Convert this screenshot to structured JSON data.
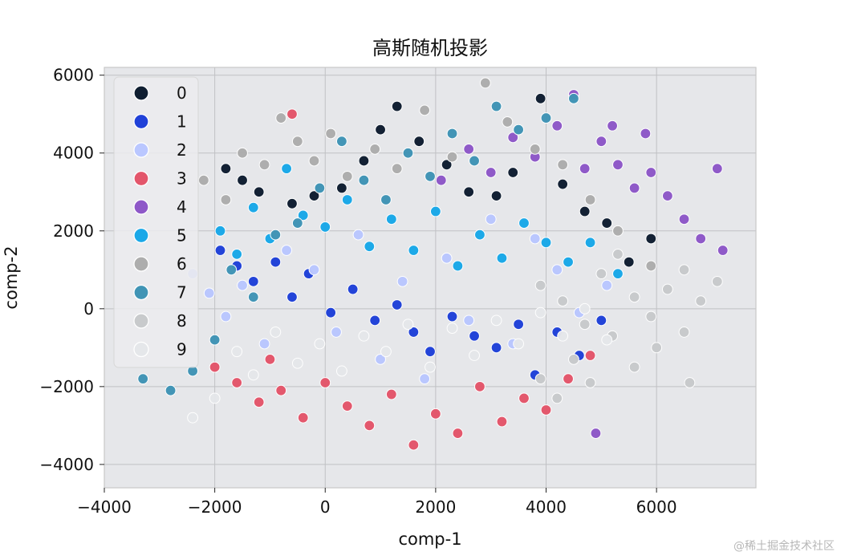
{
  "chart_data": {
    "type": "scatter",
    "title": "高斯随机投影",
    "xlabel": "comp-1",
    "ylabel": "comp-2",
    "xlim": [
      -4000,
      7800
    ],
    "ylim": [
      -4600,
      6200
    ],
    "x_ticks": [
      -4000,
      -2000,
      0,
      2000,
      4000,
      6000
    ],
    "y_ticks": [
      -4000,
      -2000,
      0,
      2000,
      4000,
      6000
    ],
    "x_tick_labels": [
      "−4000",
      "−2000",
      "0",
      "2000",
      "4000",
      "6000"
    ],
    "y_tick_labels": [
      "−4000",
      "−2000",
      "0",
      "2000",
      "4000",
      "6000"
    ],
    "grid": true,
    "legend_position": "top-left",
    "series": [
      {
        "name": "0",
        "color": "#0f1e31",
        "points": [
          [
            -1800,
            3600
          ],
          [
            -1500,
            3300
          ],
          [
            -1200,
            3000
          ],
          [
            -600,
            2700
          ],
          [
            -200,
            2900
          ],
          [
            300,
            3100
          ],
          [
            700,
            3800
          ],
          [
            1000,
            4600
          ],
          [
            1300,
            5200
          ],
          [
            1700,
            4300
          ],
          [
            2200,
            3700
          ],
          [
            2600,
            3000
          ],
          [
            3100,
            2900
          ],
          [
            3400,
            3500
          ],
          [
            3900,
            5400
          ],
          [
            4300,
            3200
          ],
          [
            4700,
            2500
          ],
          [
            5100,
            2200
          ],
          [
            5500,
            1200
          ],
          [
            5900,
            1800
          ]
        ]
      },
      {
        "name": "1",
        "color": "#2041d8",
        "points": [
          [
            -1900,
            1500
          ],
          [
            -1600,
            1100
          ],
          [
            -1300,
            700
          ],
          [
            -900,
            1200
          ],
          [
            -600,
            300
          ],
          [
            -300,
            900
          ],
          [
            100,
            -100
          ],
          [
            500,
            500
          ],
          [
            900,
            -300
          ],
          [
            1300,
            100
          ],
          [
            1600,
            -600
          ],
          [
            1900,
            -1100
          ],
          [
            2300,
            -200
          ],
          [
            2700,
            -700
          ],
          [
            3100,
            -1000
          ],
          [
            3500,
            -400
          ],
          [
            3800,
            -1700
          ],
          [
            4200,
            -600
          ],
          [
            4600,
            -1200
          ],
          [
            5000,
            -300
          ]
        ]
      },
      {
        "name": "2",
        "color": "#bac7ff",
        "points": [
          [
            -2400,
            900
          ],
          [
            -2100,
            400
          ],
          [
            -1800,
            -200
          ],
          [
            -1500,
            600
          ],
          [
            -1100,
            -900
          ],
          [
            -700,
            1500
          ],
          [
            -200,
            1000
          ],
          [
            200,
            -600
          ],
          [
            600,
            1900
          ],
          [
            1000,
            -1300
          ],
          [
            1400,
            700
          ],
          [
            1800,
            -1800
          ],
          [
            2200,
            1300
          ],
          [
            2600,
            -300
          ],
          [
            3000,
            2300
          ],
          [
            3400,
            -900
          ],
          [
            3800,
            1800
          ],
          [
            4200,
            1000
          ],
          [
            4600,
            -100
          ],
          [
            5100,
            600
          ]
        ]
      },
      {
        "name": "3",
        "color": "#e3566b",
        "points": [
          [
            -2000,
            -1500
          ],
          [
            -1600,
            -1900
          ],
          [
            -1200,
            -2400
          ],
          [
            -800,
            -2100
          ],
          [
            -400,
            -2800
          ],
          [
            0,
            -1900
          ],
          [
            400,
            -2500
          ],
          [
            800,
            -3000
          ],
          [
            1200,
            -2200
          ],
          [
            1600,
            -3500
          ],
          [
            2000,
            -2700
          ],
          [
            2400,
            -3200
          ],
          [
            2800,
            -2000
          ],
          [
            3200,
            -2900
          ],
          [
            3600,
            -2300
          ],
          [
            4000,
            -2600
          ],
          [
            4400,
            -1800
          ],
          [
            4800,
            -1200
          ],
          [
            -1000,
            -1300
          ],
          [
            -600,
            5000
          ]
        ]
      },
      {
        "name": "4",
        "color": "#8e58c8",
        "points": [
          [
            2100,
            3300
          ],
          [
            2600,
            4100
          ],
          [
            3000,
            3500
          ],
          [
            3400,
            4400
          ],
          [
            3800,
            3900
          ],
          [
            4200,
            4700
          ],
          [
            4500,
            5500
          ],
          [
            4700,
            3600
          ],
          [
            5000,
            4300
          ],
          [
            5300,
            3700
          ],
          [
            5600,
            3100
          ],
          [
            5900,
            3500
          ],
          [
            6200,
            2900
          ],
          [
            6500,
            2300
          ],
          [
            6800,
            1800
          ],
          [
            7100,
            3600
          ],
          [
            7200,
            1500
          ],
          [
            5800,
            4500
          ],
          [
            5200,
            4700
          ],
          [
            4900,
            -3200
          ]
        ]
      },
      {
        "name": "5",
        "color": "#1aa8e8",
        "points": [
          [
            -1900,
            2000
          ],
          [
            -1600,
            1400
          ],
          [
            -1300,
            2600
          ],
          [
            -1000,
            1800
          ],
          [
            -700,
            3600
          ],
          [
            -400,
            2400
          ],
          [
            0,
            2100
          ],
          [
            400,
            2800
          ],
          [
            800,
            1600
          ],
          [
            1200,
            2300
          ],
          [
            1600,
            1500
          ],
          [
            2000,
            2500
          ],
          [
            2400,
            1100
          ],
          [
            2800,
            1900
          ],
          [
            3200,
            1300
          ],
          [
            3600,
            2200
          ],
          [
            4000,
            1700
          ],
          [
            4400,
            1200
          ],
          [
            4800,
            1700
          ],
          [
            5300,
            900
          ]
        ]
      },
      {
        "name": "6",
        "color": "#adadad",
        "points": [
          [
            -2200,
            3300
          ],
          [
            -1800,
            2800
          ],
          [
            -1500,
            4000
          ],
          [
            -1100,
            3700
          ],
          [
            -800,
            4900
          ],
          [
            -500,
            4300
          ],
          [
            -200,
            3800
          ],
          [
            100,
            4500
          ],
          [
            400,
            3400
          ],
          [
            900,
            4100
          ],
          [
            1300,
            3600
          ],
          [
            1800,
            5100
          ],
          [
            2300,
            3900
          ],
          [
            2900,
            5800
          ],
          [
            3300,
            4800
          ],
          [
            3800,
            4100
          ],
          [
            4300,
            3700
          ],
          [
            4800,
            2800
          ],
          [
            5300,
            2000
          ],
          [
            5900,
            1100
          ]
        ]
      },
      {
        "name": "7",
        "color": "#4094b5",
        "points": [
          [
            -3300,
            -1800
          ],
          [
            -2800,
            -2100
          ],
          [
            -2400,
            -1600
          ],
          [
            -2000,
            -800
          ],
          [
            -1700,
            1000
          ],
          [
            -1300,
            300
          ],
          [
            -900,
            1900
          ],
          [
            -500,
            2200
          ],
          [
            -100,
            3100
          ],
          [
            300,
            4300
          ],
          [
            700,
            3300
          ],
          [
            1100,
            2800
          ],
          [
            1500,
            4000
          ],
          [
            1900,
            3400
          ],
          [
            2300,
            4500
          ],
          [
            2700,
            3800
          ],
          [
            3100,
            5200
          ],
          [
            3500,
            4600
          ],
          [
            4000,
            4900
          ],
          [
            4500,
            5400
          ]
        ]
      },
      {
        "name": "8",
        "color": "#c8cacc",
        "points": [
          [
            3900,
            600
          ],
          [
            4300,
            200
          ],
          [
            4700,
            -400
          ],
          [
            5000,
            900
          ],
          [
            5300,
            1400
          ],
          [
            5600,
            300
          ],
          [
            5900,
            -200
          ],
          [
            6200,
            500
          ],
          [
            6500,
            1000
          ],
          [
            6800,
            200
          ],
          [
            7100,
            700
          ],
          [
            6500,
            -600
          ],
          [
            6000,
            -1000
          ],
          [
            5600,
            -1500
          ],
          [
            5200,
            -700
          ],
          [
            4800,
            -1900
          ],
          [
            4500,
            -1300
          ],
          [
            4200,
            -2300
          ],
          [
            3900,
            -1800
          ],
          [
            6600,
            -1900
          ]
        ]
      },
      {
        "name": "9",
        "color": "#e5e7ea",
        "points": [
          [
            -2400,
            -2800
          ],
          [
            -2000,
            -2300
          ],
          [
            -1600,
            -1100
          ],
          [
            -1300,
            -1700
          ],
          [
            -900,
            -600
          ],
          [
            -500,
            -1400
          ],
          [
            -100,
            -900
          ],
          [
            300,
            -1600
          ],
          [
            700,
            -700
          ],
          [
            1100,
            -1100
          ],
          [
            1500,
            -400
          ],
          [
            1900,
            -1500
          ],
          [
            2300,
            -500
          ],
          [
            2700,
            -1200
          ],
          [
            3100,
            -300
          ],
          [
            3500,
            -900
          ],
          [
            3900,
            -100
          ],
          [
            4300,
            -700
          ],
          [
            4700,
            0
          ],
          [
            5100,
            -800
          ]
        ]
      }
    ]
  },
  "watermark": "@稀土掘金技术社区"
}
